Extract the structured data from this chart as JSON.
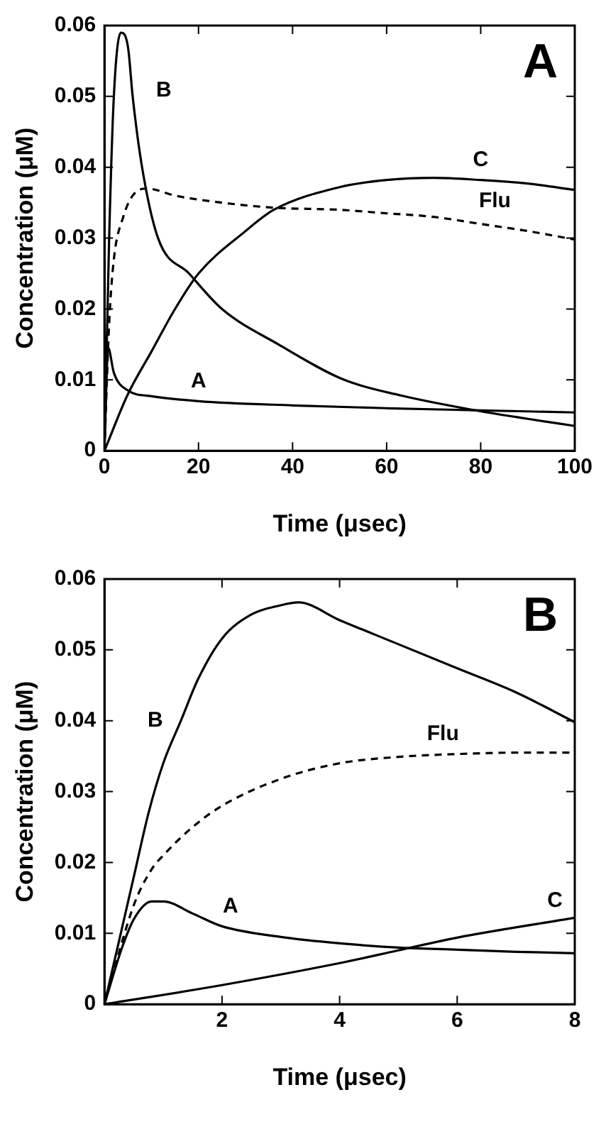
{
  "chart_data": [
    {
      "type": "line",
      "title": "A",
      "xlabel": "Time (μsec)",
      "ylabel": "Concentration (μM)",
      "xlim": [
        0,
        100
      ],
      "xticks": [
        0,
        20,
        40,
        60,
        80,
        100
      ],
      "ylim": [
        0,
        0.06
      ],
      "yticks": [
        0,
        0.01,
        0.02,
        0.03,
        0.04,
        0.05,
        0.06
      ],
      "grid": false,
      "legend": false,
      "marker": "none",
      "series": [
        {
          "name": "B",
          "color": "#000000",
          "line_style": "solid",
          "x": [
            0,
            1,
            2,
            3.5,
            5,
            6,
            8,
            11.4,
            18,
            25,
            37,
            51,
            63,
            78,
            90,
            100
          ],
          "values": [
            0,
            0.03,
            0.05,
            0.059,
            0.057,
            0.05,
            0.04,
            0.03,
            0.025,
            0.02,
            0.015,
            0.01,
            0.0078,
            0.0058,
            0.0045,
            0.0035
          ]
        },
        {
          "name": "A",
          "color": "#000000",
          "line_style": "solid",
          "x": [
            0,
            0.8,
            2,
            5,
            10,
            20,
            40,
            60,
            80,
            100
          ],
          "values": [
            0,
            0.0145,
            0.011,
            0.0085,
            0.0077,
            0.007,
            0.0064,
            0.006,
            0.0057,
            0.0054
          ]
        },
        {
          "name": "C",
          "color": "#000000",
          "line_style": "solid",
          "x": [
            0,
            5,
            10,
            15,
            20,
            30,
            36,
            50,
            60,
            70,
            80,
            90,
            100
          ],
          "values": [
            0,
            0.008,
            0.014,
            0.02,
            0.025,
            0.031,
            0.034,
            0.0372,
            0.0382,
            0.0385,
            0.0382,
            0.0377,
            0.0368
          ]
        },
        {
          "name": "Flu",
          "color": "#000000",
          "line_style": "dashed",
          "x": [
            0,
            1,
            2,
            4,
            6,
            9,
            15,
            25,
            36,
            50,
            60,
            70,
            80,
            90,
            100
          ],
          "values": [
            0,
            0.018,
            0.027,
            0.033,
            0.036,
            0.037,
            0.036,
            0.035,
            0.0343,
            0.034,
            0.0335,
            0.033,
            0.032,
            0.031,
            0.0298
          ]
        }
      ]
    },
    {
      "type": "line",
      "title": "B",
      "xlabel": "Time (μsec)",
      "ylabel": "Concentration (μM)",
      "xlim": [
        0,
        8
      ],
      "xticks": [
        {
          "value": 0,
          "label": null
        },
        2,
        4,
        6,
        8
      ],
      "ylim": [
        0,
        0.06
      ],
      "yticks": [
        0,
        0.01,
        0.02,
        0.03,
        0.04,
        0.05,
        0.06
      ],
      "grid": false,
      "legend": false,
      "marker": "none",
      "series": [
        {
          "name": "B",
          "color": "#000000",
          "line_style": "solid",
          "x": [
            0,
            0.25,
            0.5,
            0.75,
            1,
            1.3,
            1.6,
            2,
            2.5,
            3,
            3.3,
            4,
            5,
            6,
            7,
            8
          ],
          "values": [
            0,
            0.009,
            0.018,
            0.027,
            0.034,
            0.04,
            0.046,
            0.0516,
            0.055,
            0.0563,
            0.0567,
            0.0542,
            0.0508,
            0.0474,
            0.044,
            0.0398
          ]
        },
        {
          "name": "A",
          "color": "#000000",
          "line_style": "solid",
          "x": [
            0,
            0.3,
            0.5,
            0.8,
            1,
            1.5,
            2,
            3,
            4,
            5,
            6,
            7,
            8
          ],
          "values": [
            0,
            0.008,
            0.012,
            0.0145,
            0.0145,
            0.0128,
            0.011,
            0.0095,
            0.0086,
            0.008,
            0.0077,
            0.0074,
            0.0072
          ]
        },
        {
          "name": "C",
          "color": "#000000",
          "line_style": "solid",
          "x": [
            0,
            2,
            4,
            5,
            6,
            8
          ],
          "values": [
            0,
            0.0027,
            0.0058,
            0.0076,
            0.0094,
            0.0122
          ]
        },
        {
          "name": "Flu",
          "color": "#000000",
          "line_style": "dashed",
          "x": [
            0,
            0.5,
            0.8,
            1,
            1.5,
            2,
            3,
            4,
            5,
            6,
            7,
            8
          ],
          "values": [
            0,
            0.014,
            0.019,
            0.021,
            0.025,
            0.028,
            0.0318,
            0.034,
            0.0349,
            0.0353,
            0.0355,
            0.0355
          ]
        }
      ]
    }
  ]
}
